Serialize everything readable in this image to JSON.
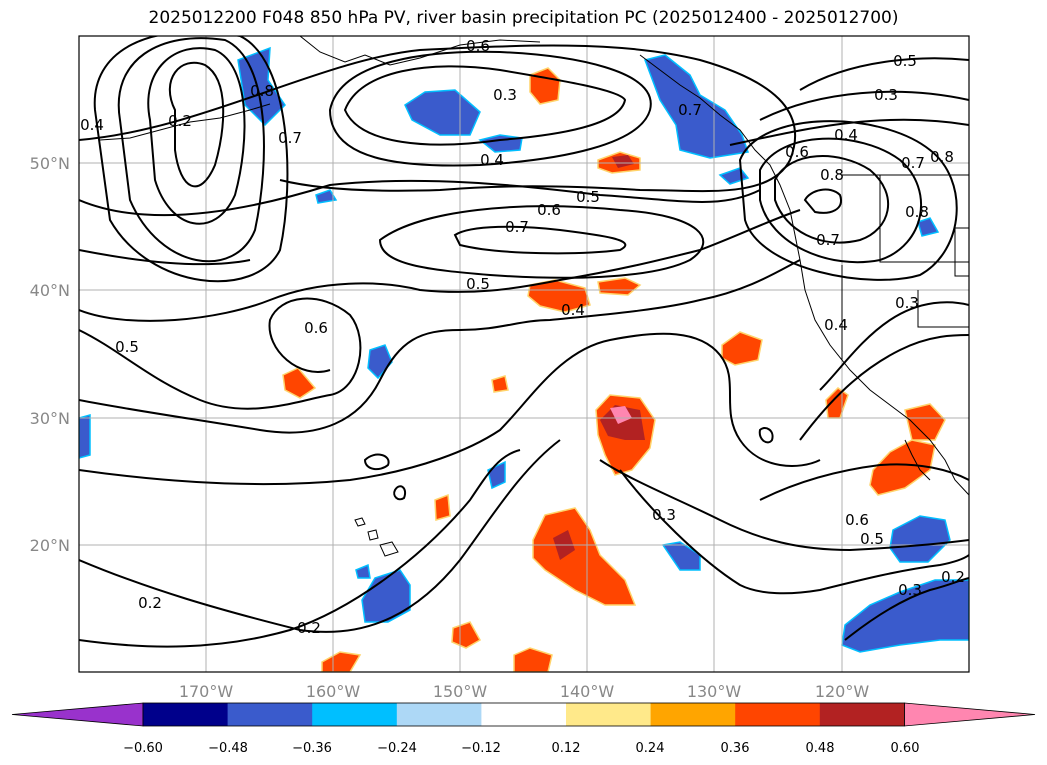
{
  "title": "2025012200 F048 850 hPa PV, river basin precipitation PC (2025012400 - 2025012700)",
  "lat_labels": [
    "50°N",
    "40°N",
    "30°N",
    "20°N"
  ],
  "lon_labels": [
    "170°W",
    "160°W",
    "150°W",
    "140°W",
    "130°W",
    "120°W"
  ],
  "contour_labels": [
    "0.6",
    "0.5",
    "0.3",
    "0.3",
    "0.4",
    "0.4",
    "0.5",
    "0.6",
    "0.7",
    "0.5",
    "0.4",
    "0.6",
    "0.5",
    "0.3",
    "0.6",
    "0.5",
    "0.3",
    "0.2",
    "0.2",
    "0.2",
    "0.7",
    "0.8",
    "0.7",
    "0.8",
    "0.3",
    "0.8",
    "0.4",
    "0.6",
    "0.7",
    "0.4",
    "0.2",
    "0.7",
    "0.8"
  ],
  "colorbar": {
    "ticks": [
      "−0.60",
      "−0.48",
      "−0.36",
      "−0.24",
      "−0.12",
      "0.12",
      "0.24",
      "0.36",
      "0.48",
      "0.60"
    ],
    "colors": [
      "#9932cc",
      "#00008b",
      "#3a5bcc",
      "#00bfff",
      "#add8f6",
      "#ffffff",
      "#ffe98a",
      "#ffa500",
      "#ff4500",
      "#b22222",
      "#ff86b0"
    ]
  },
  "colors": {
    "grid": "#b0b0b0",
    "contour": "#000000",
    "coast": "#000000"
  }
}
